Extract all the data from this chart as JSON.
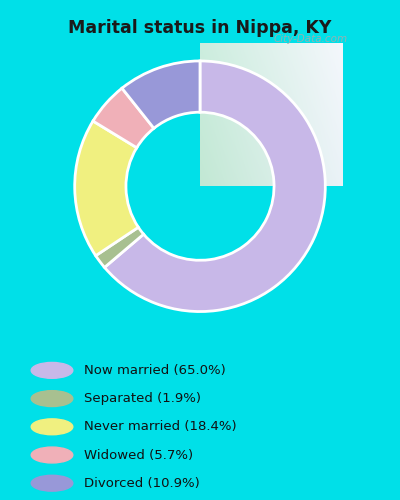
{
  "title": "Marital status in Nippa, KY",
  "slices": [
    65.0,
    1.9,
    18.4,
    5.7,
    10.9
  ],
  "labels": [
    "Now married (65.0%)",
    "Separated (1.9%)",
    "Never married (18.4%)",
    "Widowed (5.7%)",
    "Divorced (10.9%)"
  ],
  "colors": [
    "#c8b8e8",
    "#a8c090",
    "#f0f080",
    "#f0b0b8",
    "#9898d8"
  ],
  "bg_color": "#00e0e8",
  "chart_bg_topleft": "#c8e8d8",
  "chart_bg_topright": "#f0f0f8",
  "chart_bg_bottomleft": "#c0e8d0",
  "chart_bg_bottomright": "#e8eef8",
  "watermark": "City-Data.com",
  "wedge_order": [
    0,
    1,
    2,
    3,
    4
  ],
  "draw_order": [
    0,
    1,
    2,
    3,
    4
  ],
  "outer_r": 0.88,
  "inner_r": 0.52
}
